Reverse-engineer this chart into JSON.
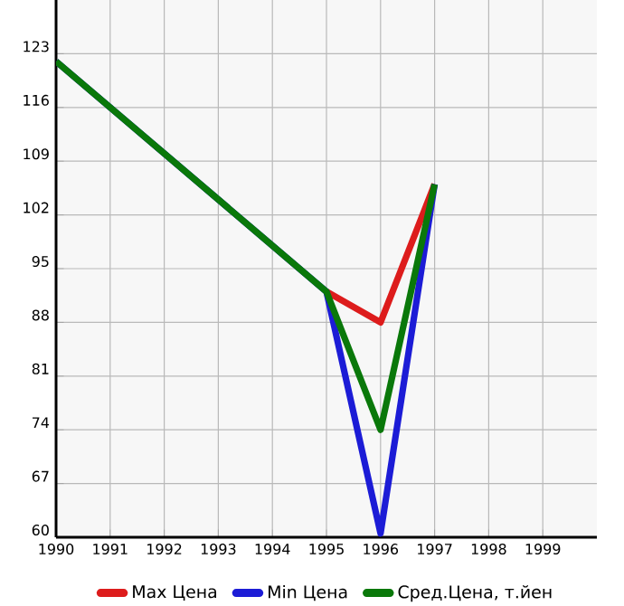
{
  "chart_data": {
    "type": "line",
    "x": [
      1990,
      1995,
      1996,
      1997
    ],
    "series": [
      {
        "name": "Max Цена",
        "color": "#dd1c1c",
        "values": [
          null,
          92,
          88,
          106
        ]
      },
      {
        "name": "Min Цена",
        "color": "#1c1cd6",
        "values": [
          122,
          92,
          60.5,
          106
        ]
      },
      {
        "name": "Сред.Цена, т.йен",
        "color": "#0a780a",
        "values": [
          122,
          92,
          74,
          106
        ]
      }
    ],
    "xlim": [
      1990,
      2000
    ],
    "ylim": [
      60,
      130
    ],
    "xticks": [
      1990,
      1991,
      1992,
      1993,
      1994,
      1995,
      1996,
      1997,
      1998,
      1999
    ],
    "yticks": [
      60,
      67,
      74,
      81,
      88,
      95,
      102,
      109,
      116,
      123
    ],
    "grid": true,
    "legend": "bottom",
    "marker": "none",
    "line_style": "solid"
  }
}
